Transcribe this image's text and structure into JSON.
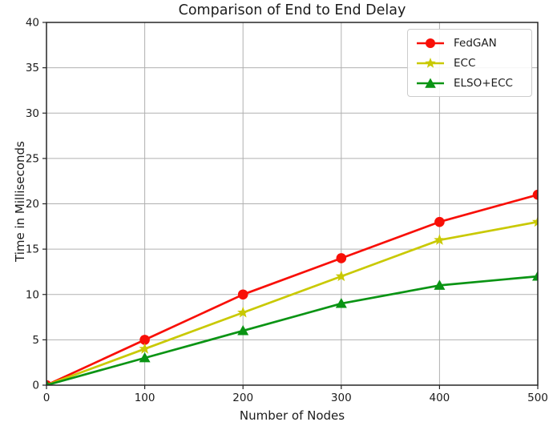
{
  "figure": {
    "title": "Comparison of End to End Delay",
    "xlabel": "Number of Nodes",
    "ylabel": "Time in Milliseconds"
  },
  "chart_data": {
    "type": "line",
    "title": "Comparison of End to End Delay",
    "xlabel": "Number of Nodes",
    "ylabel": "Time in Milliseconds",
    "x": [
      0,
      100,
      200,
      300,
      400,
      500
    ],
    "xticks": [
      0,
      100,
      200,
      300,
      400,
      500
    ],
    "yticks": [
      0,
      5,
      10,
      15,
      20,
      25,
      30,
      35,
      40
    ],
    "xlim": [
      0,
      500
    ],
    "ylim": [
      0,
      40
    ],
    "grid": true,
    "legend_position": "upper right",
    "series": [
      {
        "name": "FedGAN",
        "color": "#f80f07",
        "marker": "circle",
        "values": [
          0,
          5,
          10,
          14,
          18,
          21
        ]
      },
      {
        "name": "ECC",
        "color": "#c9c902",
        "marker": "star",
        "values": [
          0,
          4,
          8,
          12,
          16,
          18
        ]
      },
      {
        "name": "ELSO+ECC",
        "color": "#0a9414",
        "marker": "triangle-up",
        "values": [
          0,
          3,
          6,
          9,
          11,
          12
        ]
      }
    ],
    "colors": {
      "grid": "#b0b0b0",
      "axis": "#262626",
      "text": "#1c1c1c",
      "legend_border": "#cccccc",
      "background": "#ffffff"
    }
  }
}
